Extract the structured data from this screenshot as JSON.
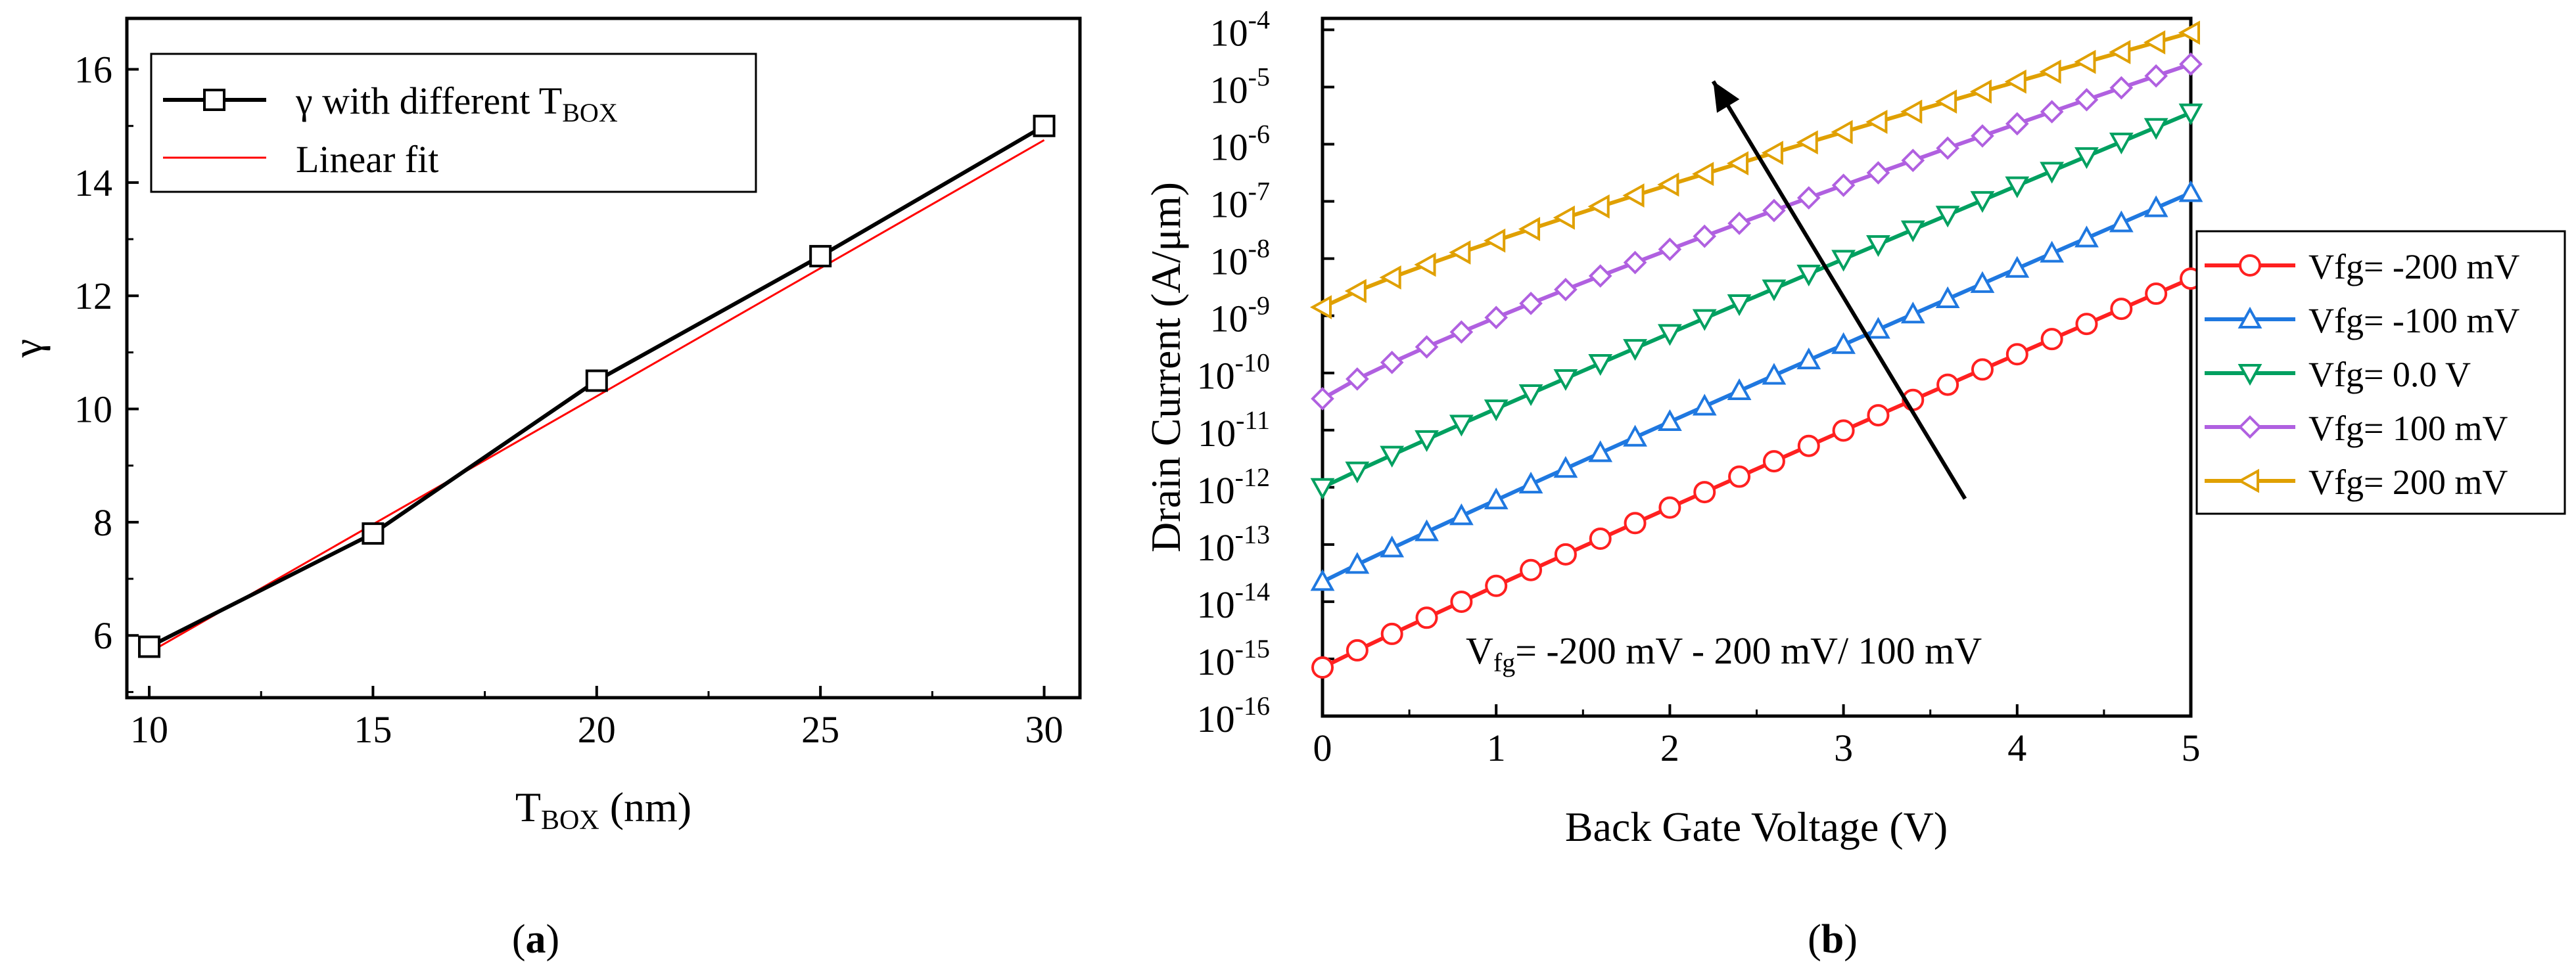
{
  "panel_labels": {
    "a": "a",
    "b": "b"
  },
  "chart_data": [
    {
      "id": "a",
      "type": "line",
      "ylabel": "γ",
      "xlabel": {
        "main": "T",
        "sub": "BOX",
        "rest": " (nm)"
      },
      "xlim": [
        9.5,
        30.8
      ],
      "ylim": [
        4.9,
        16.9
      ],
      "xticks": [
        10,
        15,
        20,
        25,
        30
      ],
      "yticks": [
        6,
        8,
        10,
        12,
        14,
        16
      ],
      "series": [
        {
          "name": "γ with different T",
          "name_sub": "BOX",
          "color": "#000000",
          "marker": "square",
          "x": [
            10,
            15,
            20,
            25,
            30
          ],
          "y": [
            5.8,
            7.8,
            10.5,
            12.7,
            15.0
          ]
        },
        {
          "name": "Linear fit",
          "color": "#ff0000",
          "marker": "none",
          "x": [
            10,
            30
          ],
          "y": [
            5.7,
            14.75
          ]
        }
      ]
    },
    {
      "id": "b",
      "type": "line",
      "scale_y": "log",
      "ylabel": "Drain Current (A/μm)",
      "xlabel": "Back Gate Voltage (V)",
      "xlim": [
        0,
        5
      ],
      "ylim_exp": [
        -16,
        -3.8
      ],
      "xticks": [
        0,
        1,
        2,
        3,
        4,
        5
      ],
      "yticks_exp": [
        -16,
        -15,
        -14,
        -13,
        -12,
        -11,
        -10,
        -9,
        -8,
        -7,
        -6,
        -5,
        -4
      ],
      "tick_base": "10",
      "annotation": {
        "main": "V",
        "sub": "fg",
        "rest": "= -200 mV - 200 mV/ 100 mV"
      },
      "arrow": {
        "from": [
          3.7,
          -12.2
        ],
        "to": [
          2.25,
          -4.9
        ]
      },
      "series": [
        {
          "name": "Vfg= -200 mV",
          "color": "#ff2020",
          "marker": "circle",
          "start_exp": -15.15,
          "end_exp": -8.35
        },
        {
          "name": "Vfg= -100 mV",
          "color": "#1f78e0",
          "marker": "triangle-up",
          "start_exp": -13.65,
          "end_exp": -6.85
        },
        {
          "name": "Vfg= 0.0 V",
          "color": "#00a060",
          "marker": "triangle-down",
          "start_exp": -12.0,
          "end_exp": -5.45
        },
        {
          "name": "Vfg= 100 mV",
          "color": "#b060e0",
          "marker": "diamond",
          "start_exp": -10.45,
          "end_exp": -4.6
        },
        {
          "name": "Vfg= 200 mV",
          "color": "#e0a000",
          "marker": "triangle-left",
          "start_exp": -8.85,
          "end_exp": -4.05
        }
      ]
    }
  ]
}
